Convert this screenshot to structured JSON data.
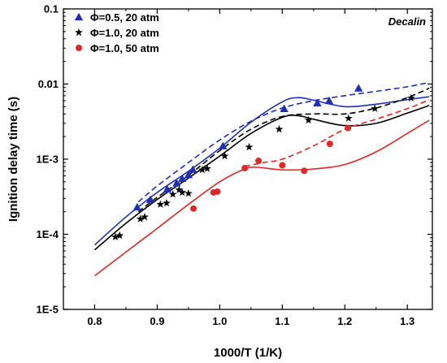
{
  "chart_data": {
    "type": "scatter",
    "annotation": "Decalin",
    "xlabel": "1000/T (1/K)",
    "ylabel": "Ignition delay time (s)",
    "xlim": [
      0.75,
      1.34
    ],
    "ylim": [
      1e-05,
      0.1
    ],
    "yscale": "log",
    "x_ticks": [
      0.8,
      0.9,
      1.0,
      1.1,
      1.2,
      1.3
    ],
    "x_tick_labels": [
      "0.8",
      "0.9",
      "1.0",
      "1.1",
      "1.2",
      "1.3"
    ],
    "y_ticks": [
      1e-05,
      0.0001,
      0.001,
      0.01,
      0.1
    ],
    "y_tick_labels": [
      "1E-5",
      "1E-4",
      "1E-3",
      "0.01",
      "0.1"
    ],
    "grid": false,
    "legend_position": "top-left",
    "series": [
      {
        "name": "Φ=0.5, 20 atm",
        "color": "#1f2fb0",
        "marker": "triangle",
        "points": [
          [
            0.868,
            0.00023
          ],
          [
            0.889,
            0.00029
          ],
          [
            0.916,
            0.0004
          ],
          [
            0.931,
            0.00048
          ],
          [
            0.94,
            0.00055
          ],
          [
            0.95,
            0.00062
          ],
          [
            0.957,
            0.00073
          ],
          [
            1.005,
            0.0015
          ],
          [
            1.103,
            0.0047
          ],
          [
            1.156,
            0.0056
          ],
          [
            1.175,
            0.006
          ],
          [
            1.222,
            0.0088
          ]
        ],
        "model": {
          "style": "solid",
          "points": [
            [
              0.8,
              7.2e-05
            ],
            [
              0.85,
              0.00017
            ],
            [
              0.9,
              0.00036
            ],
            [
              0.95,
              0.00069
            ],
            [
              1.0,
              0.0014
            ],
            [
              1.05,
              0.0031
            ],
            [
              1.1,
              0.0058
            ],
            [
              1.125,
              0.0066
            ],
            [
              1.15,
              0.0061
            ],
            [
              1.2,
              0.005
            ],
            [
              1.25,
              0.0054
            ],
            [
              1.3,
              0.0062
            ],
            [
              1.335,
              0.0068
            ]
          ]
        },
        "model_alt": {
          "style": "dashed",
          "points": [
            [
              0.87,
              0.00027
            ],
            [
              0.9,
              0.00044
            ],
            [
              0.95,
              0.0009
            ],
            [
              1.0,
              0.0018
            ],
            [
              1.05,
              0.0032
            ],
            [
              1.1,
              0.0048
            ],
            [
              1.15,
              0.006
            ],
            [
              1.2,
              0.007
            ],
            [
              1.25,
              0.008
            ],
            [
              1.3,
              0.0092
            ],
            [
              1.335,
              0.0105
            ]
          ]
        }
      },
      {
        "name": "Φ=1.0, 20 atm",
        "color": "#000000",
        "marker": "star",
        "points": [
          [
            0.833,
            9.2e-05
          ],
          [
            0.84,
            9.6e-05
          ],
          [
            0.873,
            0.00016
          ],
          [
            0.88,
            0.00017
          ],
          [
            0.905,
            0.00025
          ],
          [
            0.915,
            0.00026
          ],
          [
            0.925,
            0.00034
          ],
          [
            0.935,
            0.00039
          ],
          [
            0.94,
            0.00036
          ],
          [
            0.95,
            0.00035
          ],
          [
            0.972,
            0.00072
          ],
          [
            0.98,
            0.00075
          ],
          [
            1.008,
            0.0011
          ],
          [
            1.047,
            0.00145
          ],
          [
            1.095,
            0.0025
          ],
          [
            1.142,
            0.0033
          ],
          [
            1.206,
            0.0035
          ],
          [
            1.248,
            0.0047
          ],
          [
            1.306,
            0.0065
          ]
        ],
        "model": {
          "style": "solid",
          "points": [
            [
              0.8,
              6.2e-05
            ],
            [
              0.85,
              0.00014
            ],
            [
              0.9,
              0.00029
            ],
            [
              0.95,
              0.00056
            ],
            [
              1.0,
              0.0011
            ],
            [
              1.05,
              0.0022
            ],
            [
              1.1,
              0.0036
            ],
            [
              1.125,
              0.0038
            ],
            [
              1.15,
              0.0034
            ],
            [
              1.2,
              0.0028
            ],
            [
              1.25,
              0.003
            ],
            [
              1.3,
              0.0041
            ],
            [
              1.335,
              0.0052
            ]
          ]
        },
        "model_alt": {
          "style": "dashed",
          "points": [
            [
              0.87,
              0.0002
            ],
            [
              0.9,
              0.00031
            ],
            [
              0.95,
              0.00061
            ],
            [
              1.0,
              0.0013
            ],
            [
              1.05,
              0.0025
            ],
            [
              1.1,
              0.0037
            ],
            [
              1.15,
              0.004
            ],
            [
              1.2,
              0.004
            ],
            [
              1.25,
              0.0048
            ],
            [
              1.3,
              0.0066
            ],
            [
              1.335,
              0.0088
            ]
          ]
        }
      },
      {
        "name": "Φ=1.0, 50 atm",
        "color": "#e02828",
        "marker": "circle",
        "points": [
          [
            0.958,
            0.00022
          ],
          [
            0.99,
            0.00036
          ],
          [
            0.996,
            0.00037
          ],
          [
            1.04,
            0.00076
          ],
          [
            1.062,
            0.00095
          ],
          [
            1.1,
            0.00083
          ],
          [
            1.135,
            0.0007
          ],
          [
            1.176,
            0.0016
          ],
          [
            1.205,
            0.0026
          ]
        ],
        "model": {
          "style": "solid",
          "points": [
            [
              0.8,
              2.8e-05
            ],
            [
              0.85,
              5.8e-05
            ],
            [
              0.9,
              0.00012
            ],
            [
              0.95,
              0.00025
            ],
            [
              1.0,
              0.0005
            ],
            [
              1.04,
              0.00074
            ],
            [
              1.06,
              0.00078
            ],
            [
              1.1,
              0.00072
            ],
            [
              1.15,
              0.00074
            ],
            [
              1.2,
              0.00085
            ],
            [
              1.25,
              0.00125
            ],
            [
              1.3,
              0.0022
            ],
            [
              1.335,
              0.0033
            ]
          ]
        },
        "model_alt": {
          "style": "dashed",
          "points": [
            [
              1.04,
              0.0008
            ],
            [
              1.07,
              0.0009
            ],
            [
              1.1,
              0.001
            ],
            [
              1.15,
              0.0015
            ],
            [
              1.2,
              0.0025
            ],
            [
              1.25,
              0.0034
            ],
            [
              1.3,
              0.0047
            ],
            [
              1.335,
              0.0062
            ]
          ]
        }
      }
    ]
  }
}
